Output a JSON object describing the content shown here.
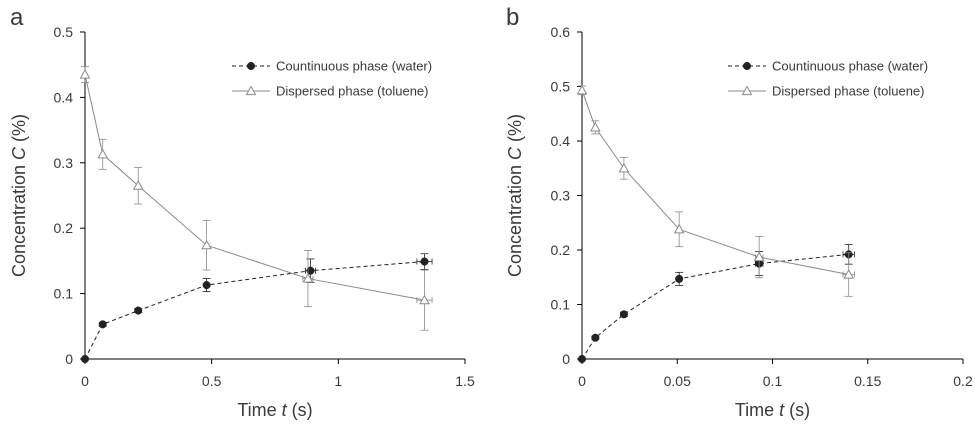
{
  "chart_data": [
    {
      "type": "line",
      "panel_label": "a",
      "xlabel_prefix": "Time ",
      "xlabel_var": "t",
      "xlabel_suffix": " (s)",
      "ylabel_prefix": "Concentration ",
      "ylabel_var": "C",
      "ylabel_suffix": " (%)",
      "xlim": [
        0,
        1.5
      ],
      "ylim": [
        0,
        0.5
      ],
      "x_ticks": [
        "0",
        "0.5",
        "1",
        "1.5"
      ],
      "x_tick_values": [
        0,
        0.5,
        1,
        1.5
      ],
      "y_ticks": [
        "0",
        "0.1",
        "0.2",
        "0.3",
        "0.4",
        "0.5"
      ],
      "y_tick_values": [
        0,
        0.1,
        0.2,
        0.3,
        0.4,
        0.5
      ],
      "grid": false,
      "legend_position": "top-right",
      "series": [
        {
          "name": "Countinuous phase (water)",
          "marker": "filled-circle",
          "line_style": "dashed",
          "color": "#222222",
          "points": [
            {
              "x": 0,
              "y": 0,
              "yerr": 0,
              "xerr": 0
            },
            {
              "x": 0.07,
              "y": 0.053,
              "yerr": 0.003,
              "xerr": 0
            },
            {
              "x": 0.21,
              "y": 0.074,
              "yerr": 0.003,
              "xerr": 0
            },
            {
              "x": 0.48,
              "y": 0.113,
              "yerr": 0.01,
              "xerr": 0
            },
            {
              "x": 0.89,
              "y": 0.135,
              "yerr": 0.018,
              "xerr": 0.02
            },
            {
              "x": 1.34,
              "y": 0.149,
              "yerr": 0.012,
              "xerr": 0.03
            }
          ]
        },
        {
          "name": "Dispersed phase (toluene)",
          "marker": "open-triangle",
          "line_style": "solid",
          "color": "#8a8a8a",
          "points": [
            {
              "x": 0,
              "y": 0.435,
              "yerr": 0.012,
              "xerr": 0
            },
            {
              "x": 0.07,
              "y": 0.313,
              "yerr": 0.023,
              "xerr": 0
            },
            {
              "x": 0.21,
              "y": 0.265,
              "yerr": 0.028,
              "xerr": 0
            },
            {
              "x": 0.48,
              "y": 0.174,
              "yerr": 0.038,
              "xerr": 0
            },
            {
              "x": 0.88,
              "y": 0.123,
              "yerr": 0.043,
              "xerr": 0.02
            },
            {
              "x": 1.34,
              "y": 0.09,
              "yerr": 0.046,
              "xerr": 0.03
            }
          ]
        }
      ]
    },
    {
      "type": "line",
      "panel_label": "b",
      "xlabel_prefix": "Time ",
      "xlabel_var": "t",
      "xlabel_suffix": " (s)",
      "ylabel_prefix": "Concentration ",
      "ylabel_var": "C",
      "ylabel_suffix": " (%)",
      "xlim": [
        0,
        0.2
      ],
      "ylim": [
        0,
        0.6
      ],
      "x_ticks": [
        "0",
        "0.05",
        "0.1",
        "0.15",
        "0.2"
      ],
      "x_tick_values": [
        0,
        0.05,
        0.1,
        0.15,
        0.2
      ],
      "y_ticks": [
        "0",
        "0.1",
        "0.2",
        "0.3",
        "0.4",
        "0.5",
        "0.6"
      ],
      "y_tick_values": [
        0,
        0.1,
        0.2,
        0.3,
        0.4,
        0.5,
        0.6
      ],
      "grid": false,
      "legend_position": "top-right",
      "series": [
        {
          "name": "Countinuous phase (water)",
          "marker": "filled-circle",
          "line_style": "dashed",
          "color": "#222222",
          "points": [
            {
              "x": 0,
              "y": 0,
              "yerr": 0,
              "xerr": 0
            },
            {
              "x": 0.007,
              "y": 0.039,
              "yerr": 0.003,
              "xerr": 0
            },
            {
              "x": 0.022,
              "y": 0.082,
              "yerr": 0.004,
              "xerr": 0
            },
            {
              "x": 0.051,
              "y": 0.147,
              "yerr": 0.012,
              "xerr": 0
            },
            {
              "x": 0.093,
              "y": 0.175,
              "yerr": 0.022,
              "xerr": 0.002
            },
            {
              "x": 0.14,
              "y": 0.192,
              "yerr": 0.018,
              "xerr": 0.003
            }
          ]
        },
        {
          "name": "Dispersed phase (toluene)",
          "marker": "open-triangle",
          "line_style": "solid",
          "color": "#8a8a8a",
          "points": [
            {
              "x": 0,
              "y": 0.493,
              "yerr": 0.008,
              "xerr": 0
            },
            {
              "x": 0.007,
              "y": 0.425,
              "yerr": 0.012,
              "xerr": 0
            },
            {
              "x": 0.022,
              "y": 0.35,
              "yerr": 0.02,
              "xerr": 0
            },
            {
              "x": 0.051,
              "y": 0.238,
              "yerr": 0.032,
              "xerr": 0
            },
            {
              "x": 0.093,
              "y": 0.187,
              "yerr": 0.038,
              "xerr": 0.002
            },
            {
              "x": 0.14,
              "y": 0.155,
              "yerr": 0.04,
              "xerr": 0.003
            }
          ]
        }
      ]
    }
  ]
}
